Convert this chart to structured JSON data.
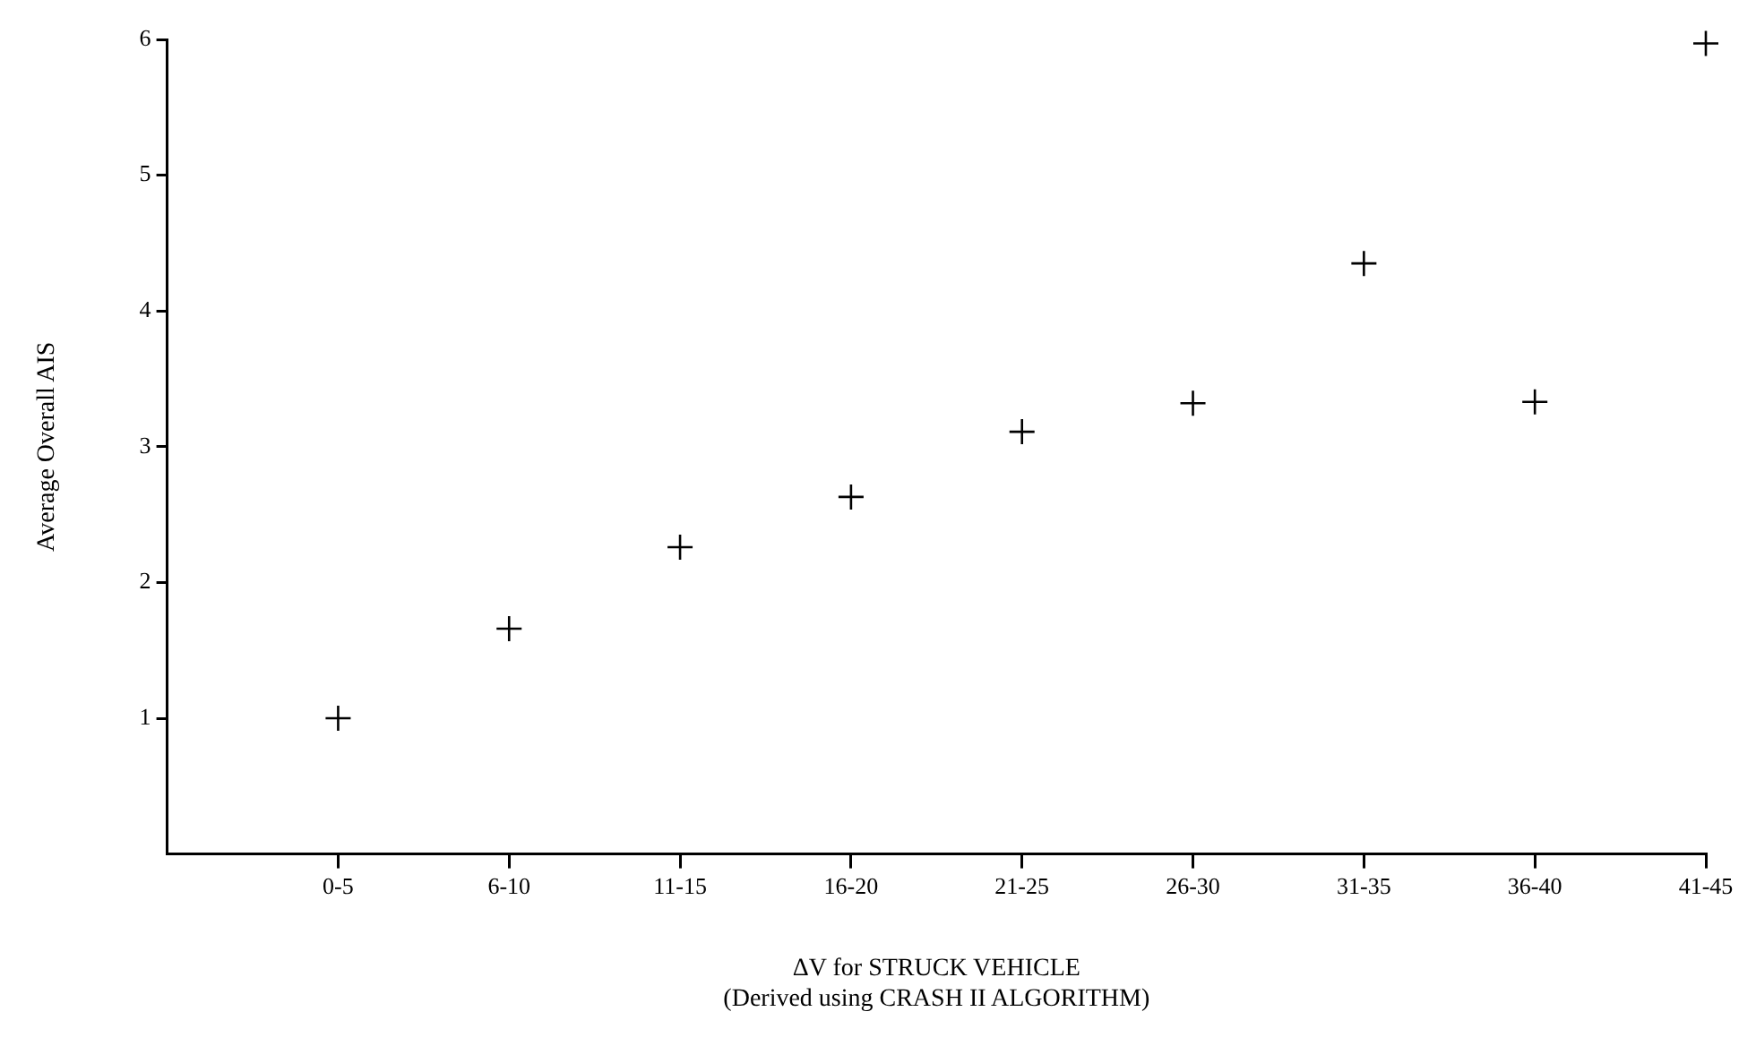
{
  "chart_data": {
    "type": "scatter",
    "xlabel": "ΔV for STRUCK VEHICLE\n(Derived using CRASH II ALGORITHM)",
    "ylabel": "Average Overall AIS",
    "categories": [
      "0-5",
      "6-10",
      "11-15",
      "16-20",
      "21-25",
      "26-30",
      "31-35",
      "36-40",
      "41-45"
    ],
    "values": [
      1.0,
      1.66,
      2.26,
      2.63,
      3.11,
      3.32,
      4.35,
      3.33,
      5.97
    ],
    "color": "#000000",
    "ylim": [
      0,
      6
    ],
    "yticks": [
      1,
      2,
      3,
      4,
      5,
      6
    ],
    "marker": "cross",
    "grid": false,
    "legend": false
  }
}
